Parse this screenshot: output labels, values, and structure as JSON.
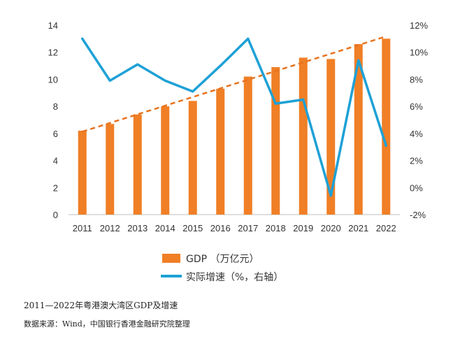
{
  "chart_data": {
    "type": "bar",
    "categories": [
      "2011",
      "2012",
      "2013",
      "2014",
      "2015",
      "2016",
      "2017",
      "2018",
      "2019",
      "2020",
      "2021",
      "2022"
    ],
    "series": [
      {
        "name": "GDP （万亿元）",
        "type": "bar",
        "axis": "left",
        "values": [
          6.2,
          6.7,
          7.4,
          8.0,
          8.4,
          9.3,
          10.2,
          10.9,
          11.6,
          11.5,
          12.6,
          13.0
        ]
      },
      {
        "name": "实际增速（%，右轴）",
        "type": "line",
        "axis": "right",
        "values": [
          11.0,
          7.9,
          9.1,
          7.9,
          7.1,
          9.0,
          11.0,
          6.2,
          6.5,
          -0.6,
          9.4,
          3.1
        ]
      }
    ],
    "trendline": {
      "type": "linear",
      "of_series": "GDP （万亿元）",
      "style": "dashed"
    },
    "y_left": {
      "min": 0,
      "max": 14,
      "ticks": [
        "0",
        "2",
        "4",
        "6",
        "8",
        "10",
        "12",
        "14"
      ]
    },
    "y_right": {
      "min": -2,
      "max": 12,
      "ticks": [
        "-2%",
        "0%",
        "2%",
        "4%",
        "6%",
        "8%",
        "10%",
        "12%"
      ]
    },
    "legend_position": "bottom",
    "grid": false,
    "colors": {
      "bar": "#f07f26",
      "line": "#1ea1d6",
      "trend": "#e8731e"
    }
  },
  "caption": "2011—2022年粤港澳大湾区GDP及增速",
  "source": "数据来源：Wind，中国银行香港金融研究院整理"
}
